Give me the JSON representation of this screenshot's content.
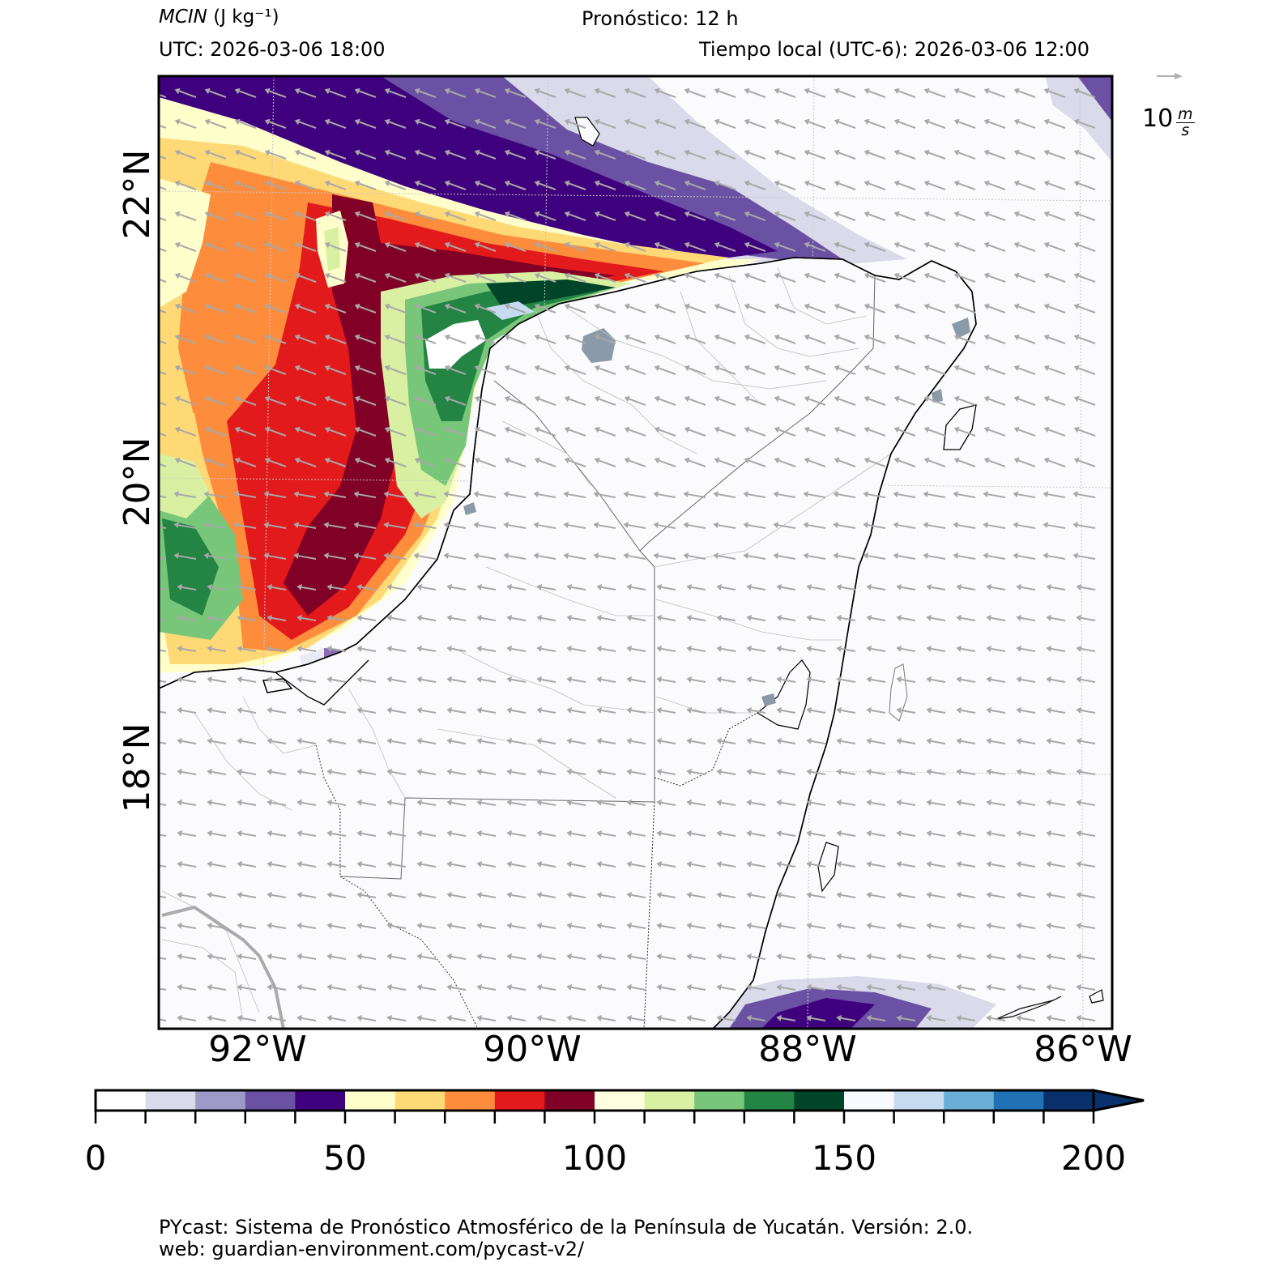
{
  "header": {
    "variable_label": "MCIN",
    "units_label": "(J kg⁻¹)",
    "forecast_label": "Pronóstico: 12 h",
    "utc_label": "UTC:  2026-03-06 18:00",
    "local_time_label": "Tiempo local (UTC-6): 2026-03-06 12:00"
  },
  "wind_legend": {
    "value": "10",
    "unit_num": "m",
    "unit_den": "s"
  },
  "axes": {
    "lon_ticks": [
      "92°W",
      "90°W",
      "88°W",
      "86°W"
    ],
    "lat_ticks": [
      "22°N",
      "20°N",
      "18°N"
    ]
  },
  "colorbar": {
    "ticks": [
      "0",
      "50",
      "100",
      "150",
      "200"
    ],
    "min": 0,
    "max": 200,
    "step": 10,
    "extend": "max",
    "colors": [
      "#ffffff",
      "#dadaeb",
      "#9e9ac8",
      "#6a51a3",
      "#3f007d",
      "#ffffcc",
      "#fed976",
      "#fd8d3c",
      "#e31a1c",
      "#800026",
      "#ffffe0",
      "#d9f0a3",
      "#78c679",
      "#238443",
      "#004529",
      "#f7fbff",
      "#c6dbef",
      "#6baed6",
      "#2171b5",
      "#08306b"
    ],
    "extend_color": "#08306b"
  },
  "footer": {
    "line1": "PYcast: Sistema de Pronóstico Atmosférico de la Península de Yucatán. Versión: 2.0.",
    "line2": "web: guardian-environment.com/pycast-v2/"
  },
  "map_colors": {
    "ocean": "#fbfbfd",
    "land_cities": "#8a9aa8",
    "wind_arrow": "#a8a8a8",
    "grid": "#cccccc",
    "coast": "#000000"
  }
}
